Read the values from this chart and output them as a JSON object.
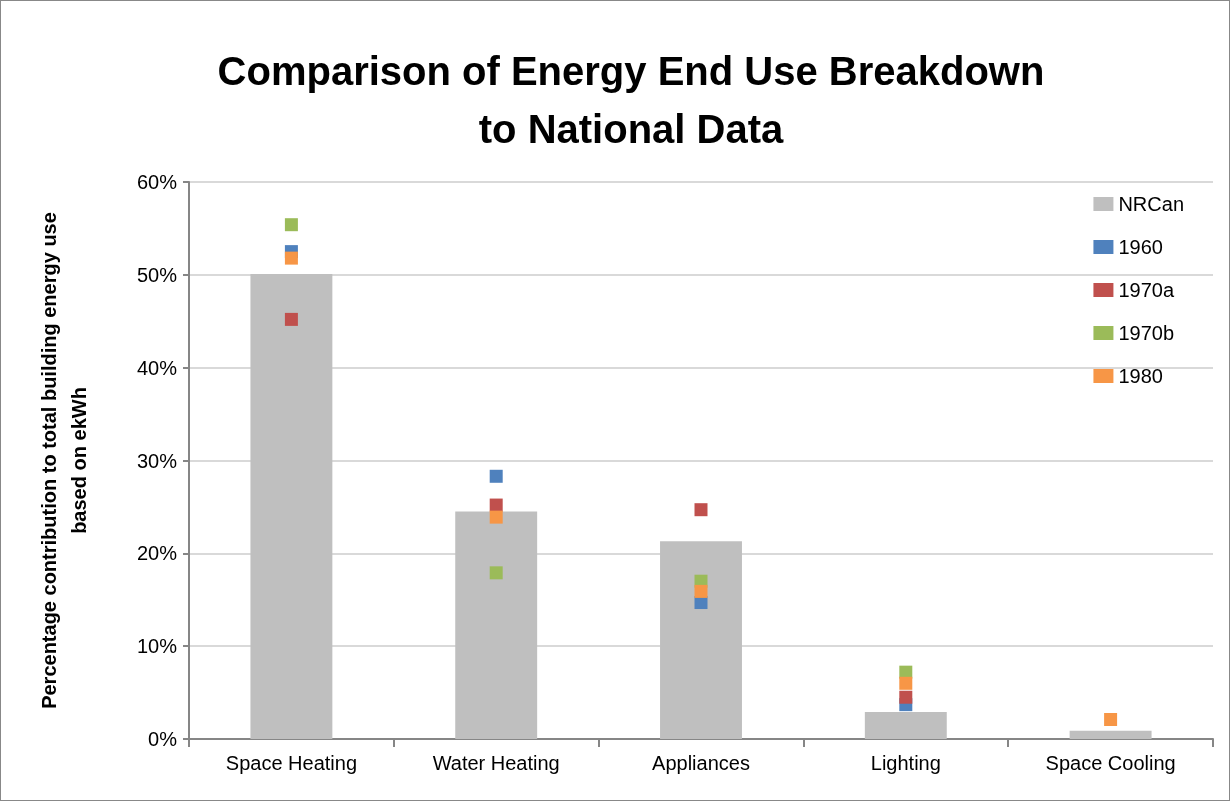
{
  "chart_data": {
    "type": "scatter",
    "title": "Comparison of Energy End Use Breakdown\nto National Data",
    "ylabel": "Percentage contribution to total building energy use\nbased on ekWh",
    "categories": [
      "Space Heating",
      "Water Heating",
      "Appliances",
      "Lighting",
      "Space Cooling"
    ],
    "series": [
      {
        "name": "NRCan",
        "type": "bar",
        "color": "#bfbfbf",
        "values": [
          50.1,
          24.5,
          21.3,
          2.9,
          0.9
        ]
      },
      {
        "name": "1960",
        "color": "#4f81bd",
        "values": [
          52.5,
          28.3,
          14.7,
          3.7,
          null
        ]
      },
      {
        "name": "1970a",
        "type": "scatter",
        "color": "#c0504d",
        "values": [
          45.2,
          25.2,
          24.7,
          4.5,
          null
        ]
      },
      {
        "name": "1970b",
        "type": "scatter",
        "color": "#9bbb59",
        "values": [
          55.4,
          17.9,
          17.0,
          7.2,
          null
        ]
      },
      {
        "name": "1980",
        "type": "scatter",
        "color": "#f79646",
        "values": [
          51.8,
          23.9,
          15.9,
          6.0,
          2.1
        ]
      }
    ],
    "ylim": [
      0,
      60
    ],
    "yticks": [
      {
        "value": 0,
        "label": "0%"
      },
      {
        "value": 10,
        "label": "10%"
      },
      {
        "value": 20,
        "label": "20%"
      },
      {
        "value": 30,
        "label": "30%"
      },
      {
        "value": 40,
        "label": "40%"
      },
      {
        "value": 50,
        "label": "50%"
      },
      {
        "value": 60,
        "label": "60%"
      }
    ],
    "grid": "y",
    "legend": "top right",
    "marker": "square"
  }
}
